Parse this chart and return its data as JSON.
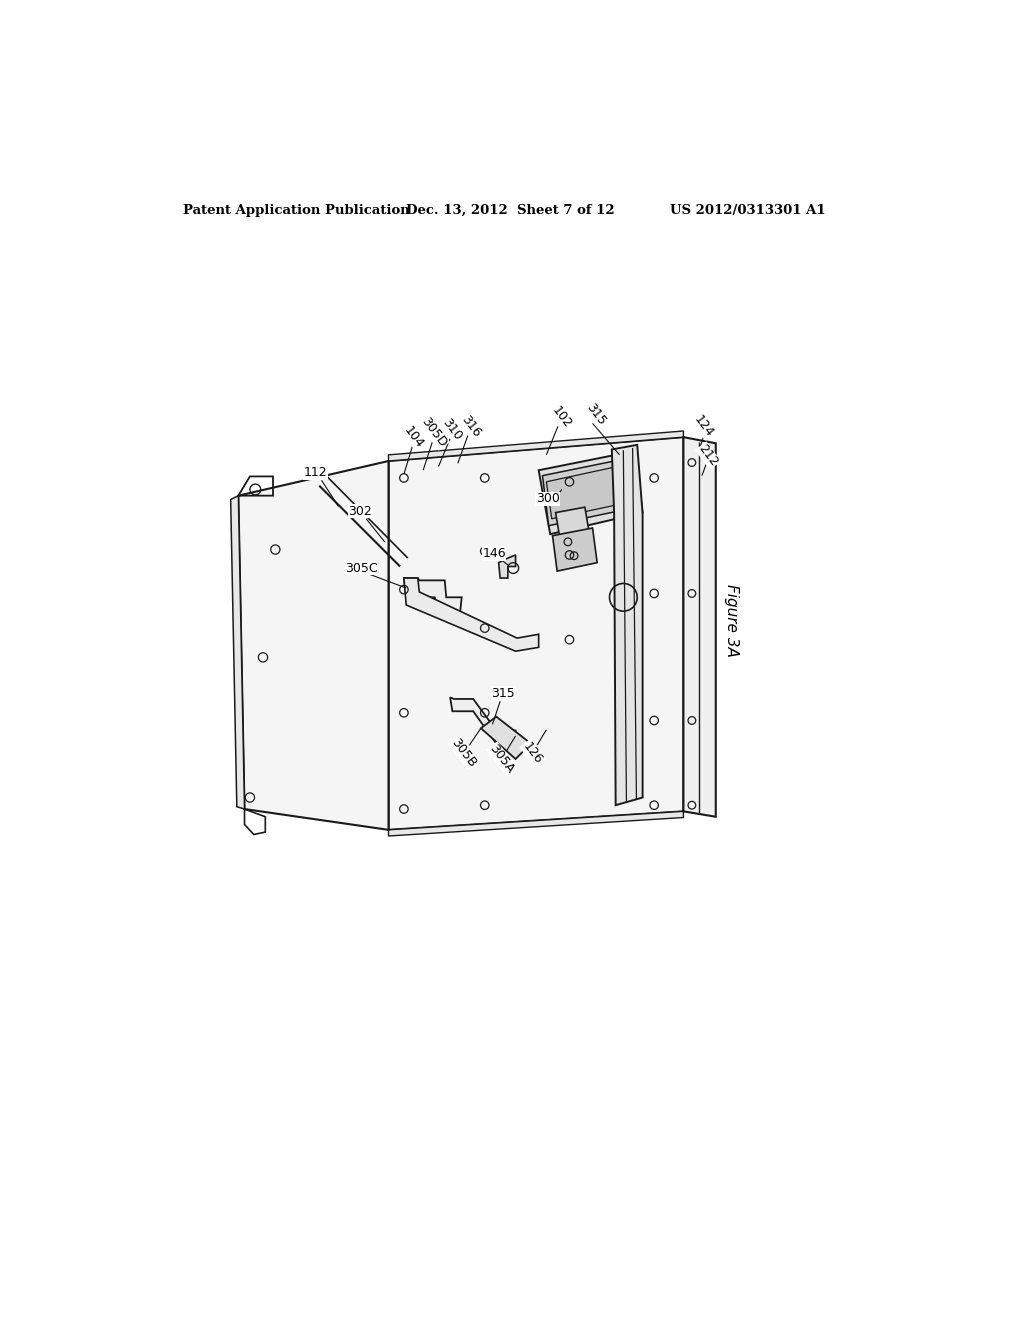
{
  "background_color": "#ffffff",
  "header_left": "Patent Application Publication",
  "header_center": "Dec. 13, 2012  Sheet 7 of 12",
  "header_right": "US 2012/0313301 A1",
  "figure_label": "Figure 3A"
}
